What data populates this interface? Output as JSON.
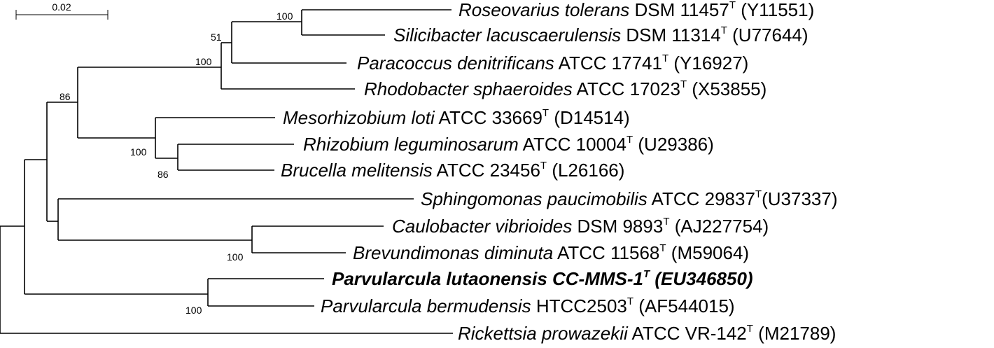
{
  "scale_bar": {
    "label": "0.02"
  },
  "taxa": [
    {
      "id": "roseovarius",
      "genus_species": "Roseovarius tolerans",
      "strain": " DSM 11457",
      "type_mark": "T",
      "accession": " (Y11551)"
    },
    {
      "id": "silicibacter",
      "genus_species": "Silicibacter lacuscaerulensis",
      "strain": " DSM 11314",
      "type_mark": "T",
      "accession": " (U77644)"
    },
    {
      "id": "paracoccus",
      "genus_species": "Paracoccus denitrificans",
      "strain": " ATCC 17741",
      "type_mark": "T",
      "accession": " (Y16927)"
    },
    {
      "id": "rhodobacter",
      "genus_species": "Rhodobacter sphaeroides",
      "strain": " ATCC 17023",
      "type_mark": "T",
      "accession": " (X53855)"
    },
    {
      "id": "mesorhizobium",
      "genus_species": "Mesorhizobium loti",
      "strain": " ATCC 33669",
      "type_mark": "T",
      "accession": " (D14514)"
    },
    {
      "id": "rhizobium",
      "genus_species": "Rhizobium leguminosarum",
      "strain": " ATCC 10004",
      "type_mark": "T",
      "accession": " (U29386)"
    },
    {
      "id": "brucella",
      "genus_species": "Brucella melitensis",
      "strain": " ATCC 23456",
      "type_mark": "T",
      "accession": " (L26166)"
    },
    {
      "id": "sphingomonas",
      "genus_species": "Sphingomonas paucimobilis",
      "strain": " ATCC 29837",
      "type_mark": "T",
      "accession": "(U37337)"
    },
    {
      "id": "caulobacter",
      "genus_species": "Caulobacter vibrioides",
      "strain": " DSM 9893",
      "type_mark": "T",
      "accession": " (AJ227754)"
    },
    {
      "id": "brevundimonas",
      "genus_species": "Brevundimonas diminuta",
      "strain": " ATCC 11568",
      "type_mark": "T",
      "accession": " (M59064)"
    },
    {
      "id": "parvularcula-lutaonensis",
      "full_label": "Parvularcula lutaonensis CC-MMS-1",
      "type_mark": "T",
      "accession": " (EU346850)",
      "bold": true
    },
    {
      "id": "parvularcula-bermudensis",
      "genus_species": "Parvularcula bermudensis",
      "strain": " HTCC2503",
      "type_mark": "T",
      "accession": " (AF544015)"
    },
    {
      "id": "rickettsia",
      "genus_species": "Rickettsia prowazekii",
      "strain": " ATCC VR-142",
      "type_mark": "T",
      "accession": " (M21789)"
    }
  ],
  "bootstrap": [
    {
      "node": "roseovarius-silicibacter",
      "value": "100"
    },
    {
      "node": "roseo-sil-paracoccus",
      "value": "51"
    },
    {
      "node": "rhodobacterales",
      "value": "100"
    },
    {
      "node": "alpha-core",
      "value": "86"
    },
    {
      "node": "rhizobiales",
      "value": "100"
    },
    {
      "node": "rhizobium-brucella",
      "value": "86"
    },
    {
      "node": "caulobacterales",
      "value": "100"
    },
    {
      "node": "parvularcula",
      "value": "100"
    }
  ]
}
